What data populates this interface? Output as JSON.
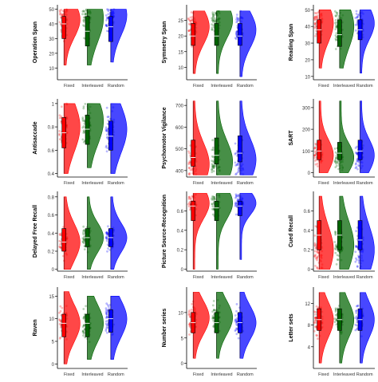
{
  "figure": {
    "groups": [
      "Fixed",
      "Interleaved",
      "Random"
    ],
    "colors": {
      "Fixed": "#ff0000",
      "Interleaved": "#006400",
      "Random": "#0000ff"
    },
    "panel_order": [
      [
        "Operation Span",
        "Symmetry Span",
        "Reading Span"
      ],
      [
        "Antisaccade",
        "Psychomotor Vigilance",
        "SART"
      ],
      [
        "Delayed Free Recall",
        "Picture Source-Recognition",
        "Cued Recall"
      ],
      [
        "Raven",
        "Number series",
        "Letter sets"
      ]
    ]
  },
  "chart_data": [
    {
      "type": "raincloud",
      "ylabel": "Operation Span",
      "yticks": [
        10,
        20,
        30,
        40,
        50
      ],
      "ylim": [
        2,
        53
      ],
      "categories": [
        "Fixed",
        "Interleaved",
        "Random"
      ],
      "medians": [
        40,
        35,
        38
      ],
      "q1": [
        30,
        25,
        28
      ],
      "q3": [
        45,
        45,
        45
      ],
      "modes": [
        43,
        44,
        46
      ],
      "range": [
        [
          12,
          50
        ],
        [
          12,
          50
        ],
        [
          14,
          50
        ]
      ]
    },
    {
      "type": "raincloud",
      "ylabel": "Symmetry Span",
      "yticks": [
        10,
        15,
        20,
        25
      ],
      "ylim": [
        6,
        30
      ],
      "categories": [
        "Fixed",
        "Interleaved",
        "Random"
      ],
      "medians": [
        20,
        20,
        20
      ],
      "q1": [
        17,
        17,
        17
      ],
      "q3": [
        24,
        24,
        24
      ],
      "modes": [
        23,
        25,
        22
      ],
      "range": [
        [
          8,
          28
        ],
        [
          8,
          28
        ],
        [
          7,
          28
        ]
      ]
    },
    {
      "type": "raincloud",
      "ylabel": "Reading Span",
      "yticks": [
        10,
        20,
        30,
        40,
        50
      ],
      "ylim": [
        8,
        53
      ],
      "categories": [
        "Fixed",
        "Interleaved",
        "Random"
      ],
      "medians": [
        38,
        35,
        38
      ],
      "q1": [
        30,
        28,
        32
      ],
      "q3": [
        44,
        44,
        44
      ],
      "modes": [
        42,
        40,
        42
      ],
      "range": [
        [
          15,
          50
        ],
        [
          15,
          50
        ],
        [
          12,
          50
        ]
      ]
    },
    {
      "type": "raincloud",
      "ylabel": "Antisaccade",
      "yticks": [
        0.4,
        0.6,
        0.8,
        1.0
      ],
      "ylim": [
        0.37,
        1.04
      ],
      "categories": [
        "Fixed",
        "Interleaved",
        "Random"
      ],
      "medians": [
        0.75,
        0.78,
        0.72
      ],
      "q1": [
        0.62,
        0.65,
        0.6
      ],
      "q3": [
        0.88,
        0.9,
        0.85
      ],
      "modes": [
        0.8,
        0.85,
        0.78
      ],
      "range": [
        [
          0.4,
          1.0
        ],
        [
          0.45,
          1.0
        ],
        [
          0.4,
          1.0
        ]
      ]
    },
    {
      "type": "raincloud",
      "ylabel": "Psychomotor Vigilance",
      "yticks": [
        400,
        500,
        600,
        700
      ],
      "ylim": [
        370,
        730
      ],
      "categories": [
        "Fixed",
        "Interleaved",
        "Random"
      ],
      "medians": [
        460,
        470,
        480
      ],
      "q1": [
        420,
        430,
        440
      ],
      "q3": [
        540,
        550,
        560
      ],
      "modes": [
        430,
        440,
        450
      ],
      "range": [
        [
          380,
          720
        ],
        [
          380,
          720
        ],
        [
          380,
          720
        ]
      ]
    },
    {
      "type": "raincloud",
      "ylabel": "SART",
      "yticks": [
        0,
        100,
        200,
        300
      ],
      "ylim": [
        -20,
        340
      ],
      "categories": [
        "Fixed",
        "Interleaved",
        "Random"
      ],
      "medians": [
        100,
        90,
        100
      ],
      "q1": [
        60,
        60,
        60
      ],
      "q3": [
        150,
        140,
        150
      ],
      "modes": [
        80,
        70,
        80
      ],
      "range": [
        [
          0,
          330
        ],
        [
          0,
          330
        ],
        [
          0,
          330
        ]
      ]
    },
    {
      "type": "raincloud",
      "ylabel": "Delayed Free Recall",
      "yticks": [
        0.0,
        0.2,
        0.4,
        0.6,
        0.8
      ],
      "ylim": [
        -0.02,
        0.86
      ],
      "categories": [
        "Fixed",
        "Interleaved",
        "Random"
      ],
      "medians": [
        0.3,
        0.35,
        0.35
      ],
      "q1": [
        0.2,
        0.25,
        0.25
      ],
      "q3": [
        0.45,
        0.45,
        0.45
      ],
      "modes": [
        0.3,
        0.35,
        0.35
      ],
      "range": [
        [
          0.0,
          0.8
        ],
        [
          0.0,
          0.8
        ],
        [
          0.0,
          0.8
        ]
      ]
    },
    {
      "type": "raincloud",
      "ylabel": "Picture Source-Recognition",
      "yticks": [
        0.0,
        0.2,
        0.4,
        0.6
      ],
      "ylim": [
        -0.02,
        0.8
      ],
      "categories": [
        "Fixed",
        "Interleaved",
        "Random"
      ],
      "medians": [
        0.65,
        0.63,
        0.65
      ],
      "q1": [
        0.5,
        0.5,
        0.55
      ],
      "q3": [
        0.7,
        0.7,
        0.7
      ],
      "modes": [
        0.68,
        0.68,
        0.68
      ],
      "range": [
        [
          0.0,
          0.78
        ],
        [
          0.0,
          0.78
        ],
        [
          0.1,
          0.78
        ]
      ]
    },
    {
      "type": "raincloud",
      "ylabel": "Cued Recall",
      "yticks": [
        0.0,
        0.2,
        0.4,
        0.6
      ],
      "ylim": [
        -0.02,
        0.8
      ],
      "categories": [
        "Fixed",
        "Interleaved",
        "Random"
      ],
      "medians": [
        0.35,
        0.35,
        0.3
      ],
      "q1": [
        0.2,
        0.2,
        0.2
      ],
      "q3": [
        0.5,
        0.5,
        0.5
      ],
      "modes": [
        0.2,
        0.25,
        0.2
      ],
      "range": [
        [
          0.0,
          0.75
        ],
        [
          0.0,
          0.75
        ],
        [
          0.0,
          0.75
        ]
      ]
    },
    {
      "type": "raincloud",
      "ylabel": "Raven",
      "yticks": [
        0,
        5,
        10,
        15
      ],
      "ylim": [
        -1,
        17
      ],
      "categories": [
        "Fixed",
        "Interleaved",
        "Random"
      ],
      "medians": [
        9,
        9,
        10
      ],
      "q1": [
        6,
        6,
        7
      ],
      "q3": [
        11,
        11,
        12
      ],
      "modes": [
        9,
        9,
        10
      ],
      "range": [
        [
          0,
          16
        ],
        [
          1,
          15
        ],
        [
          1,
          15
        ]
      ]
    },
    {
      "type": "raincloud",
      "ylabel": "Number series",
      "yticks": [
        0,
        5,
        10
      ],
      "ylim": [
        -1,
        15
      ],
      "categories": [
        "Fixed",
        "Interleaved",
        "Random"
      ],
      "medians": [
        8,
        8,
        8
      ],
      "q1": [
        6,
        6,
        6
      ],
      "q3": [
        10,
        10,
        10
      ],
      "modes": [
        9,
        9,
        8
      ],
      "range": [
        [
          1,
          14
        ],
        [
          1,
          14
        ],
        [
          1,
          14
        ]
      ]
    },
    {
      "type": "raincloud",
      "ylabel": "Letter sets",
      "yticks": [
        4,
        8,
        12
      ],
      "ylim": [
        0,
        15
      ],
      "categories": [
        "Fixed",
        "Interleaved",
        "Random"
      ],
      "medians": [
        9,
        9,
        9
      ],
      "q1": [
        7,
        7,
        7
      ],
      "q3": [
        11,
        11,
        11
      ],
      "modes": [
        9,
        9,
        9
      ],
      "range": [
        [
          1,
          14
        ],
        [
          1,
          14
        ],
        [
          1,
          14
        ]
      ]
    }
  ]
}
